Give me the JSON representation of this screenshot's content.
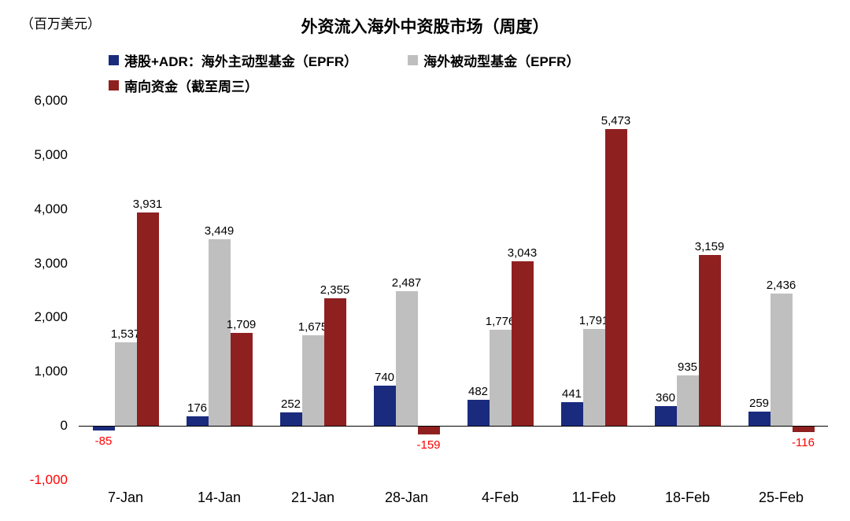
{
  "chart_data": {
    "type": "bar",
    "title": "外资流入海外中资股市场（周度）",
    "ylabel": "（百万美元）",
    "xlabel": "",
    "categories": [
      "7-Jan",
      "14-Jan",
      "21-Jan",
      "28-Jan",
      "4-Feb",
      "11-Feb",
      "18-Feb",
      "25-Feb"
    ],
    "series": [
      {
        "name": "港股+ADR：海外主动型基金（EPFR）",
        "color": "#1A2B7D",
        "values": [
          -85,
          176,
          252,
          740,
          482,
          441,
          360,
          259
        ]
      },
      {
        "name": "海外被动型基金（EPFR）",
        "color": "#BFBFBF",
        "values": [
          1537,
          3449,
          1675,
          2487,
          1776,
          1791,
          935,
          2436
        ]
      },
      {
        "name": "南向资金（截至周三）",
        "color": "#8F2020",
        "values": [
          3931,
          1709,
          2355,
          -159,
          3043,
          5473,
          3159,
          -116
        ]
      }
    ],
    "ylim": [
      -1000,
      6000
    ],
    "ytick_step": 1000,
    "grid": false,
    "legend_position": "top-left",
    "legend_rows": [
      [
        0,
        1
      ],
      [
        2
      ]
    ],
    "negative_label_color": "#FF0000",
    "axis_text_color": "#000000"
  }
}
